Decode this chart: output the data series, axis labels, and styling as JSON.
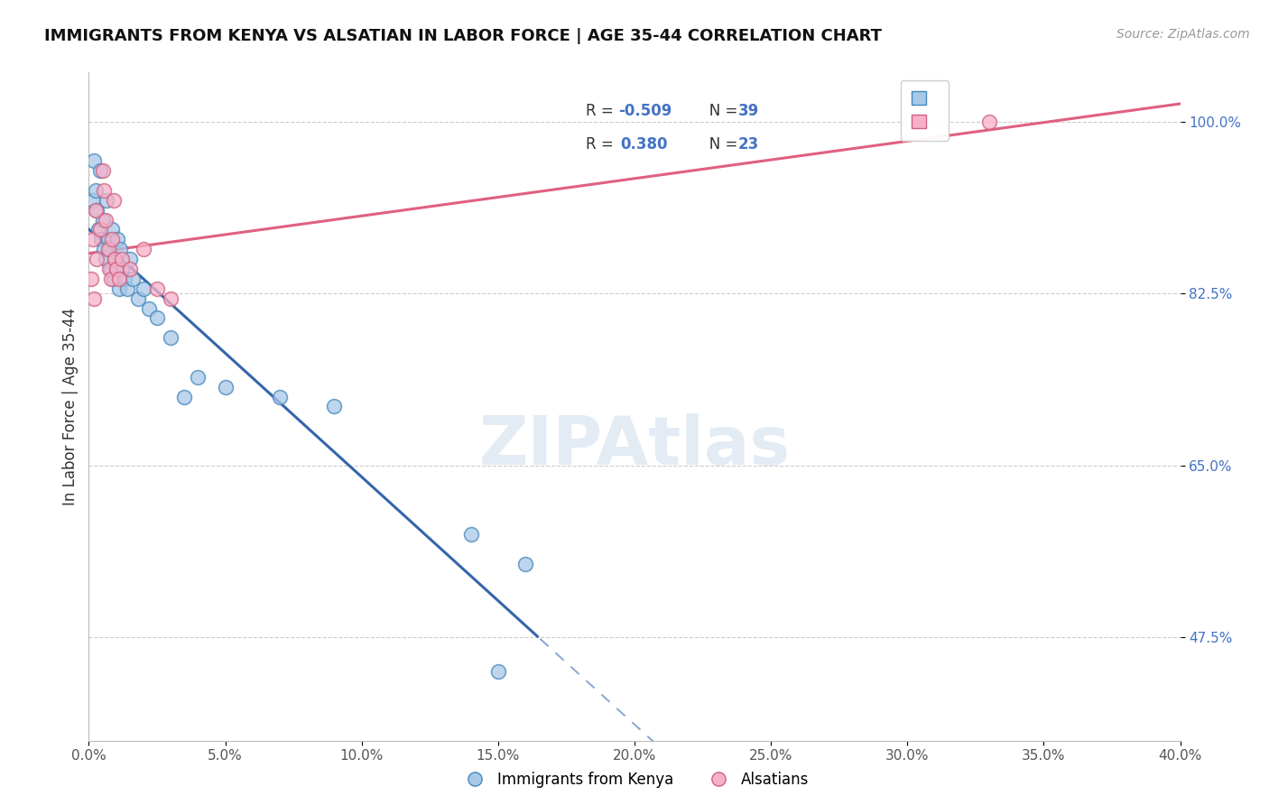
{
  "title": "IMMIGRANTS FROM KENYA VS ALSATIAN IN LABOR FORCE | AGE 35-44 CORRELATION CHART",
  "source": "Source: ZipAtlas.com",
  "ylabel": "In Labor Force | Age 35-44",
  "xlim": [
    0.0,
    40.0
  ],
  "ylim": [
    37.0,
    105.0
  ],
  "legend_blue_r": "-0.509",
  "legend_blue_n": "39",
  "legend_pink_r": "0.380",
  "legend_pink_n": "23",
  "blue_scatter_face": "#a8c8e8",
  "blue_scatter_edge": "#4488bb",
  "pink_scatter_face": "#f8b0c8",
  "pink_scatter_edge": "#d06080",
  "blue_line_color": "#3366aa",
  "pink_line_color": "#e06080",
  "watermark": "ZIPAtlas",
  "watermark_color": "#c8d8ea",
  "kenya_x": [
    0.15,
    0.2,
    0.25,
    0.3,
    0.35,
    0.4,
    0.45,
    0.5,
    0.55,
    0.6,
    0.65,
    0.7,
    0.75,
    0.8,
    0.85,
    0.9,
    0.95,
    1.0,
    1.05,
    1.1,
    1.15,
    1.2,
    1.3,
    1.4,
    1.5,
    1.6,
    1.8,
    2.0,
    2.2,
    2.5,
    3.0,
    3.5,
    4.0,
    5.0,
    7.0,
    9.0,
    14.0,
    15.0,
    16.0
  ],
  "kenya_y": [
    92.0,
    96.0,
    93.0,
    91.0,
    89.0,
    95.0,
    88.0,
    90.0,
    87.0,
    86.0,
    92.0,
    88.0,
    87.0,
    85.0,
    89.0,
    84.0,
    86.0,
    85.0,
    88.0,
    83.0,
    87.0,
    85.0,
    84.0,
    83.0,
    86.0,
    84.0,
    82.0,
    83.0,
    81.0,
    80.0,
    78.0,
    72.0,
    74.0,
    73.0,
    72.0,
    71.0,
    58.0,
    44.0,
    55.0
  ],
  "alsatian_x": [
    0.1,
    0.15,
    0.2,
    0.25,
    0.3,
    0.4,
    0.5,
    0.55,
    0.6,
    0.7,
    0.75,
    0.8,
    0.85,
    0.9,
    0.95,
    1.0,
    1.1,
    1.2,
    1.5,
    2.0,
    2.5,
    3.0,
    33.0
  ],
  "alsatian_y": [
    84.0,
    88.0,
    82.0,
    91.0,
    86.0,
    89.0,
    95.0,
    93.0,
    90.0,
    87.0,
    85.0,
    84.0,
    88.0,
    92.0,
    86.0,
    85.0,
    84.0,
    86.0,
    85.0,
    87.0,
    83.0,
    82.0,
    100.0
  ],
  "ytick_vals": [
    47.5,
    65.0,
    82.5,
    100.0
  ],
  "xtick_vals": [
    0,
    5,
    10,
    15,
    20,
    25,
    30,
    35,
    40
  ]
}
